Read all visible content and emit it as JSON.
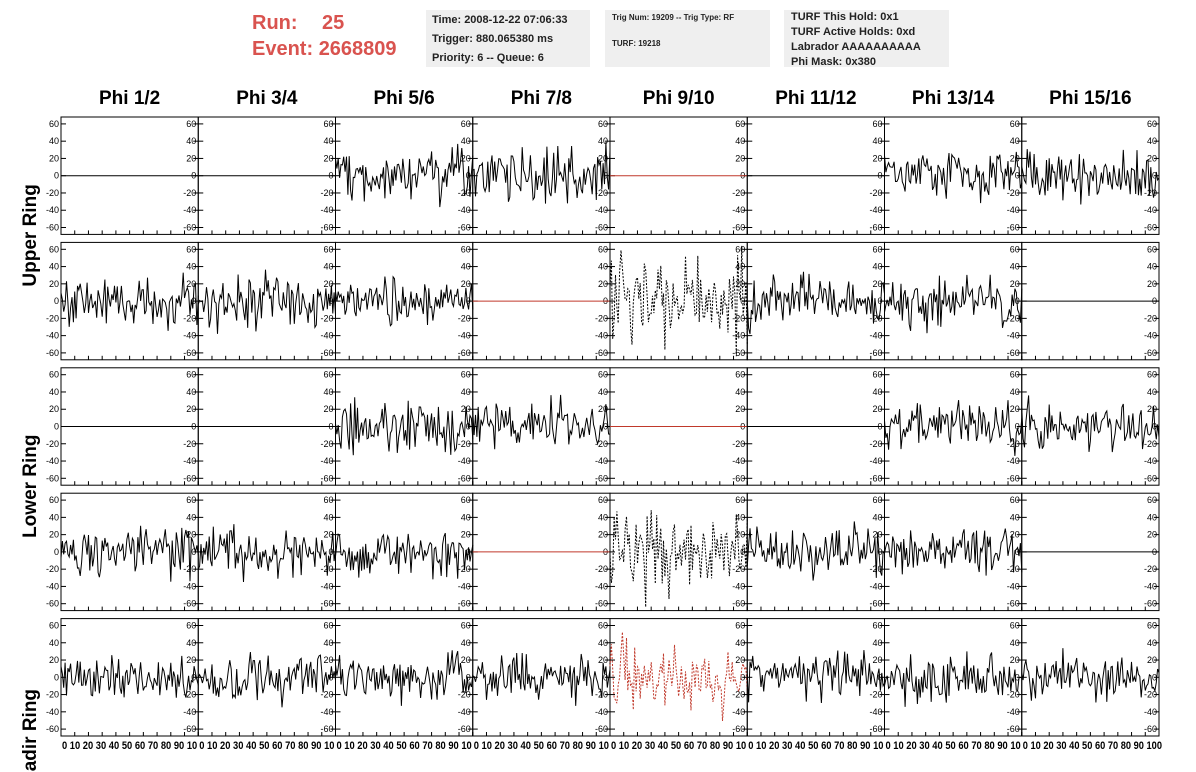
{
  "header": {
    "run_label": "Run:",
    "run_value": "25",
    "event_label": "Event:",
    "event_value": "2668809",
    "time_line": "Time: 2008-12-22 07:06:33",
    "trigger_line": "Trigger: 880.065380 ms",
    "priority_line": "Priority: 6 -- Queue: 6",
    "trig_line": "Trig Num: 19209 -- Trig Type: RF",
    "turf_line": "TURF: 19218",
    "turf_hold_line": "TURF This Hold: 0x1",
    "turf_active_line": "TURF Active Holds: 0xd",
    "labrador_line": "Labrador AAAAAAAAAA",
    "phi_mask_line": "Phi Mask: 0x380",
    "accent_color": "#d9534f"
  },
  "chart_data": {
    "type": "line",
    "columns": [
      "Phi 1/2",
      "Phi 3/4",
      "Phi 5/6",
      "Phi 7/8",
      "Phi 9/10",
      "Phi 11/12",
      "Phi 13/14",
      "Phi 15/16"
    ],
    "rows": [
      {
        "label": "Upper Ring",
        "show_label": true
      },
      {
        "label": "Upper Ring",
        "show_label": false
      },
      {
        "label": "Lower Ring",
        "show_label": true
      },
      {
        "label": "Lower Ring",
        "show_label": false
      },
      {
        "label": "Nadir Ring",
        "show_label": true
      }
    ],
    "xlim": [
      0,
      100
    ],
    "ylim": [
      -68,
      68
    ],
    "y_ticks": [
      -60,
      -40,
      -20,
      0,
      20,
      40,
      60
    ],
    "x_ticks_text": [
      "0 10 20 30 40 50 60 70 80 90 10",
      "0 10 20 30 40 50 60 70 80 90 10",
      "0 10 20 30 40 50 60 70 80 90 10",
      "0 10 20 30 40 50 60 70 80 90 10",
      "0 10 20 30 40 50 60 70 80 90 10",
      "0 10 20 30 40 50 60 70 80 90 10",
      "0 10 20 30 40 50 60 70 80 90 10",
      "0 10 20 30 40 50 60 70 80 90 100"
    ],
    "panel_styles": {
      "flat": {
        "color": "#000000",
        "amplitude": 0
      },
      "flat_red": {
        "color": "#c0392b",
        "amplitude": 0
      },
      "noise": {
        "color": "#000000",
        "amplitude": 14
      },
      "pulse_dashed": {
        "color": "#000000",
        "amplitude": 24,
        "dashed": true
      },
      "pulse_red_dashed": {
        "color": "#c0392b",
        "amplitude": 18,
        "dashed": true
      }
    },
    "panels": [
      [
        "flat",
        "flat",
        "noise",
        "noise",
        "flat_red",
        "flat",
        "noise",
        "noise"
      ],
      [
        "noise",
        "noise",
        "noise",
        "flat_red",
        "pulse_dashed",
        "noise",
        "noise",
        "flat"
      ],
      [
        "flat",
        "flat",
        "noise",
        "noise",
        "flat_red",
        "flat",
        "noise",
        "noise"
      ],
      [
        "noise",
        "noise",
        "noise",
        "flat_red",
        "pulse_dashed",
        "noise",
        "noise",
        "flat"
      ],
      [
        "noise",
        "noise",
        "noise",
        "noise",
        "pulse_red_dashed",
        "noise",
        "noise",
        "noise"
      ]
    ],
    "grid": false
  }
}
